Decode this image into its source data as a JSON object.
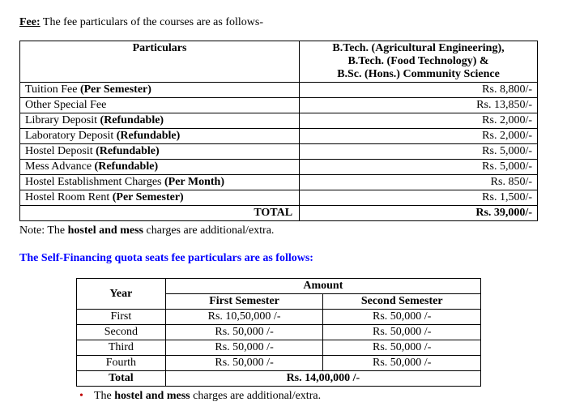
{
  "heading": {
    "label": "Fee:",
    "rest": " The fee particulars of the courses are as follows-"
  },
  "fee_table": {
    "header_particulars": "Particulars",
    "header_programs_l1": "B.Tech. (Agricultural Engineering),",
    "header_programs_l2": "B.Tech. (Food Technology) &",
    "header_programs_l3": "B.Sc. (Hons.) Community Science",
    "rows": [
      {
        "p_plain": "Tuition Fee ",
        "p_bold": "(Per Semester)",
        "amt": "Rs. 8,800/-"
      },
      {
        "p_plain": "Other Special Fee",
        "p_bold": "",
        "amt": "Rs. 13,850/-"
      },
      {
        "p_plain": "Library Deposit ",
        "p_bold": "(Refundable)",
        "amt": "Rs. 2,000/-"
      },
      {
        "p_plain": "Laboratory Deposit ",
        "p_bold": "(Refundable)",
        "amt": "Rs. 2,000/-"
      },
      {
        "p_plain": "Hostel Deposit ",
        "p_bold": "(Refundable)",
        "amt": "Rs. 5,000/-"
      },
      {
        "p_plain": "Mess Advance ",
        "p_bold": "(Refundable)",
        "amt": "Rs. 5,000/-"
      },
      {
        "p_plain": "Hostel Establishment Charges ",
        "p_bold": "(Per Month)",
        "amt": "Rs. 850/-"
      },
      {
        "p_plain": "Hostel Room Rent ",
        "p_bold": "(Per Semester)",
        "amt": "Rs. 1,500/-"
      }
    ],
    "total_label": "TOTAL",
    "total_amount": "Rs.  39,000/-"
  },
  "note": {
    "pre": "Note: The ",
    "bold": "hostel and mess",
    "post": " charges are additional/extra."
  },
  "sf_heading": "The Self-Financing quota seats fee particulars are as follows:",
  "sf_table": {
    "year_header": "Year",
    "amount_header": "Amount",
    "sem1_header": "First Semester",
    "sem2_header": "Second Semester",
    "rows": [
      {
        "year": "First",
        "s1": "Rs. 10,50,000 /-",
        "s2": "Rs. 50,000 /-"
      },
      {
        "year": "Second",
        "s1": "Rs. 50,000 /-",
        "s2": "Rs. 50,000 /-"
      },
      {
        "year": "Third",
        "s1": "Rs. 50,000 /-",
        "s2": "Rs. 50,000 /-"
      },
      {
        "year": "Fourth",
        "s1": "Rs. 50,000 /-",
        "s2": "Rs. 50,000 /-"
      }
    ],
    "total_label": "Total",
    "total_amount": "Rs. 14,00,000 /-"
  },
  "sf_note": {
    "pre": "The ",
    "bold": "hostel and mess",
    "post": " charges are additional/extra."
  }
}
